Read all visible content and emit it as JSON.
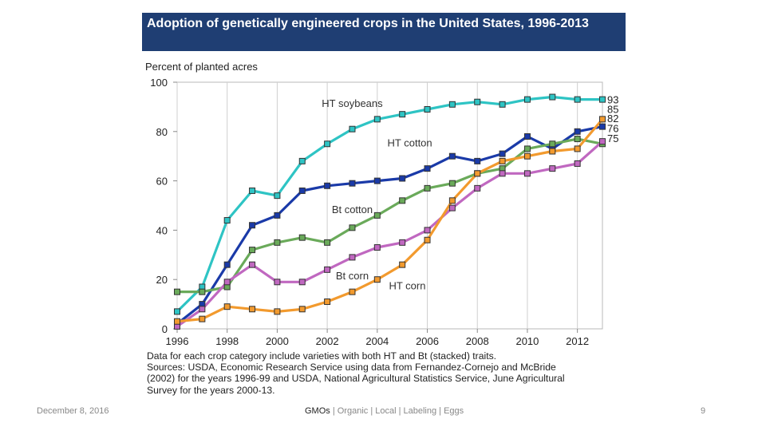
{
  "slide": {
    "footer_date": "December 8, 2016",
    "footer_topic_first": "GMOs",
    "footer_topic_rest": " | Organic | Local | Labeling | Eggs",
    "page_number": "9"
  },
  "figure": {
    "title": "Adoption of genetically engineered crops in the United States, 1996-2013",
    "notes": [
      "Data for each crop category include varieties with both HT and Bt (stacked) traits.",
      "Sources: USDA, Economic Research Service using data from Fernandez-Cornejo and McBride",
      "(2002) for the years 1996-99 and USDA, National Agricultural Statistics Service, June Agricultural",
      "Survey for the years 2000-13."
    ]
  },
  "chart_data": {
    "type": "line",
    "title": "Adoption of genetically engineered crops in the United States, 1996-2013",
    "ylabel": "Percent of planted acres",
    "xlabel": "",
    "ylim": [
      0,
      100
    ],
    "xlim": [
      1996,
      2013
    ],
    "yticks": [
      0,
      20,
      40,
      60,
      80,
      100
    ],
    "xticks": [
      1996,
      1998,
      2000,
      2002,
      2004,
      2006,
      2008,
      2010,
      2012
    ],
    "grid": "vertical",
    "x": [
      1996,
      1997,
      1998,
      1999,
      2000,
      2001,
      2002,
      2003,
      2004,
      2005,
      2006,
      2007,
      2008,
      2009,
      2010,
      2011,
      2012,
      2013
    ],
    "series": [
      {
        "name": "HT soybeans",
        "label": "HT soybeans",
        "color": "#2ec4c4",
        "end_label": "93",
        "values": [
          7,
          17,
          44,
          56,
          54,
          68,
          75,
          81,
          85,
          87,
          89,
          91,
          92,
          91,
          93,
          94,
          93,
          93
        ]
      },
      {
        "name": "HT cotton",
        "label": "HT cotton",
        "color": "#1a3aa8",
        "end_label": "82",
        "values": [
          2,
          10,
          26,
          42,
          46,
          56,
          58,
          59,
          60,
          61,
          65,
          70,
          68,
          71,
          78,
          73,
          80,
          82
        ]
      },
      {
        "name": "Bt cotton",
        "label": "Bt cotton",
        "color": "#6aaa5a",
        "end_label": "75",
        "values": [
          15,
          15,
          17,
          32,
          35,
          37,
          35,
          41,
          46,
          52,
          57,
          59,
          63,
          65,
          73,
          75,
          77,
          75
        ]
      },
      {
        "name": "Bt corn",
        "label": "Bt corn",
        "color": "#c068c0",
        "end_label": "76",
        "values": [
          1,
          8,
          19,
          26,
          19,
          19,
          24,
          29,
          33,
          35,
          40,
          49,
          57,
          63,
          63,
          65,
          67,
          76
        ]
      },
      {
        "name": "HT corn",
        "label": "HT corn",
        "color": "#f29a2e",
        "end_label": "85",
        "values": [
          3,
          4,
          9,
          8,
          7,
          8,
          11,
          15,
          20,
          26,
          36,
          52,
          63,
          68,
          70,
          72,
          73,
          85
        ]
      }
    ]
  }
}
